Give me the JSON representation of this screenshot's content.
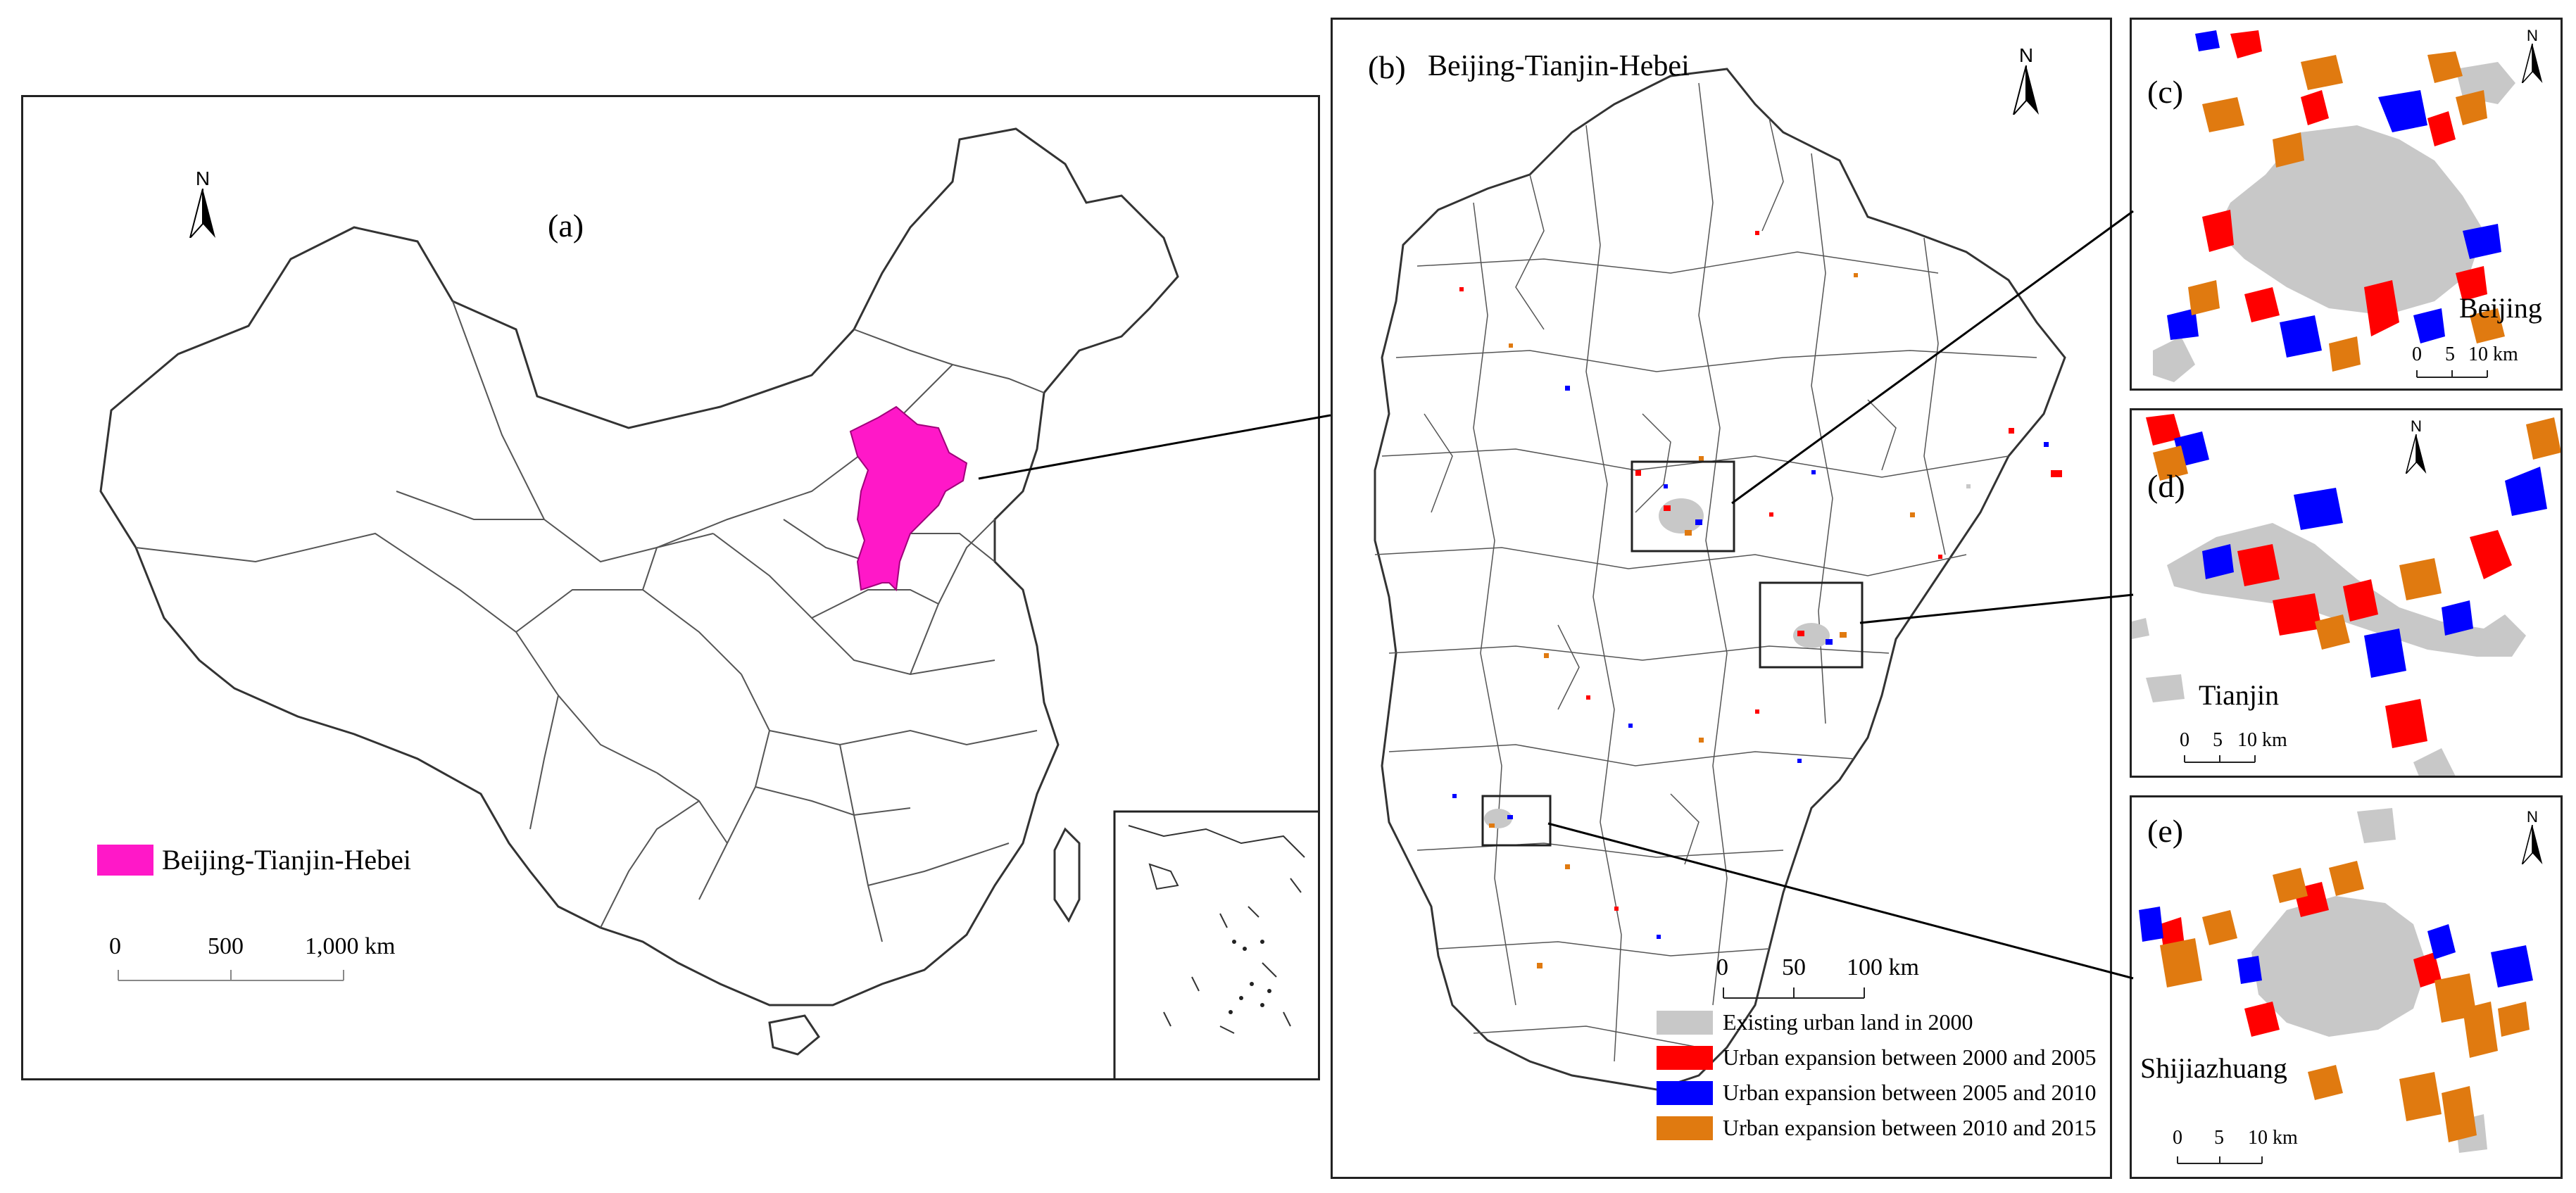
{
  "panel_a": {
    "label": "(a)",
    "legend_label": "Beijing-Tianjin-Hebei",
    "scale": {
      "ticks": [
        "0",
        "500",
        "1,000 km"
      ]
    },
    "north": "N"
  },
  "panel_b": {
    "label": "(b)",
    "title": "Beijing-Tianjin-Hebei",
    "north": "N",
    "scale": {
      "ticks": [
        "0",
        "50",
        "100 km"
      ]
    },
    "legend": [
      {
        "label": "Existing urban land in 2000",
        "color": "#c8c8c8"
      },
      {
        "label": "Urban expansion between 2000 and 2005",
        "color": "#ff0000"
      },
      {
        "label": "Urban expansion between 2005 and 2010",
        "color": "#0000ff"
      },
      {
        "label": "Urban expansion between 2010 and 2015",
        "color": "#e07a10"
      }
    ]
  },
  "panel_c": {
    "label": "(c)",
    "city": "Beijing",
    "north": "N",
    "scale": {
      "ticks": [
        "0",
        "5",
        "10 km"
      ]
    }
  },
  "panel_d": {
    "label": "(d)",
    "city": "Tianjin",
    "north": "N",
    "scale": {
      "ticks": [
        "0",
        "5",
        "10 km"
      ]
    }
  },
  "panel_e": {
    "label": "(e)",
    "city": "Shijiazhuang",
    "north": "N",
    "scale": {
      "ticks": [
        "0",
        "5",
        "10 km"
      ]
    }
  },
  "colors": {
    "highlight": "#ff18c8",
    "urban2000": "#c8c8c8",
    "exp2005": "#ff0000",
    "exp2010": "#0000ff",
    "exp2015": "#e07a10"
  }
}
